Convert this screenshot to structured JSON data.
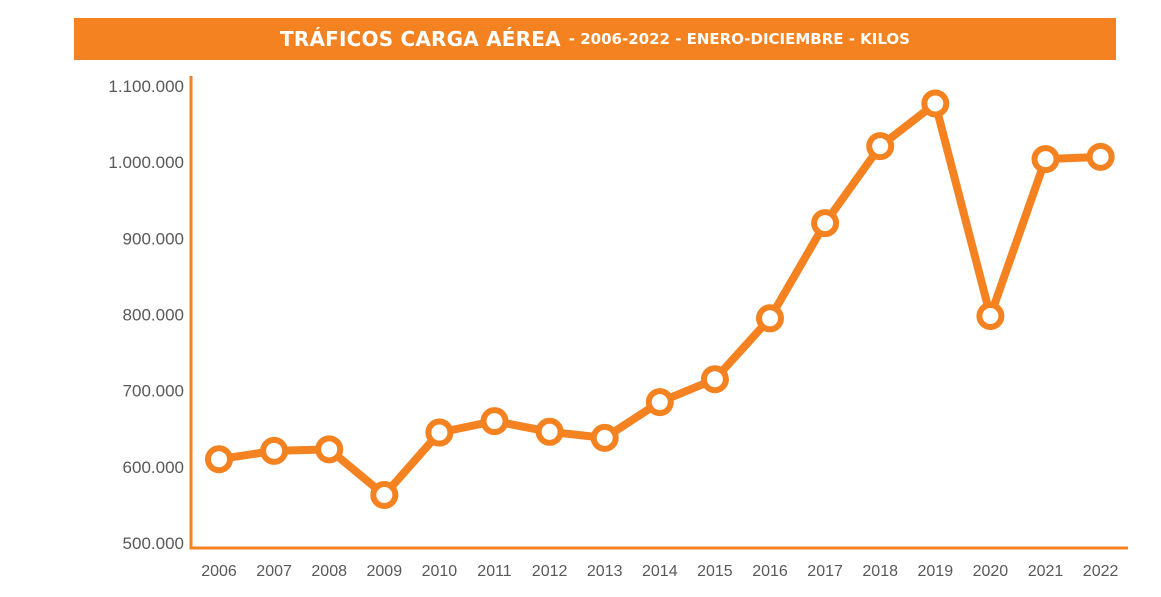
{
  "header": {
    "title": "TRÁFICOS CARGA AÉREA",
    "subtitle": "- 2006-2022 - ENERO-DICIEMBRE - KILOS"
  },
  "colors": {
    "accent": "#f58220",
    "marker_fill": "#ffffff",
    "tick_text": "#595959"
  },
  "chart_data": {
    "type": "line",
    "title": "TRÁFICOS CARGA AÉREA - 2006-2022 - ENERO-DICIEMBRE - KILOS",
    "xlabel": "",
    "ylabel": "",
    "x": [
      "2006",
      "2007",
      "2008",
      "2009",
      "2010",
      "2011",
      "2012",
      "2013",
      "2014",
      "2015",
      "2016",
      "2017",
      "2018",
      "2019",
      "2020",
      "2021",
      "2022"
    ],
    "series": [
      {
        "values": [
          610000,
          621000,
          623000,
          563000,
          645000,
          660000,
          646000,
          638000,
          685000,
          715000,
          795000,
          920000,
          1021000,
          1077000,
          798000,
          1004000,
          1007000
        ]
      }
    ],
    "ylim": [
      500000,
      1100000
    ],
    "yticks": [
      500000,
      600000,
      700000,
      800000,
      900000,
      1000000,
      1100000
    ],
    "ytick_labels": [
      "500.000",
      "600.000",
      "700.000",
      "800.000",
      "900.000",
      "1.000.000",
      "1.100.000"
    ],
    "grid": false,
    "legend": "none",
    "markers": "hollow circles"
  }
}
